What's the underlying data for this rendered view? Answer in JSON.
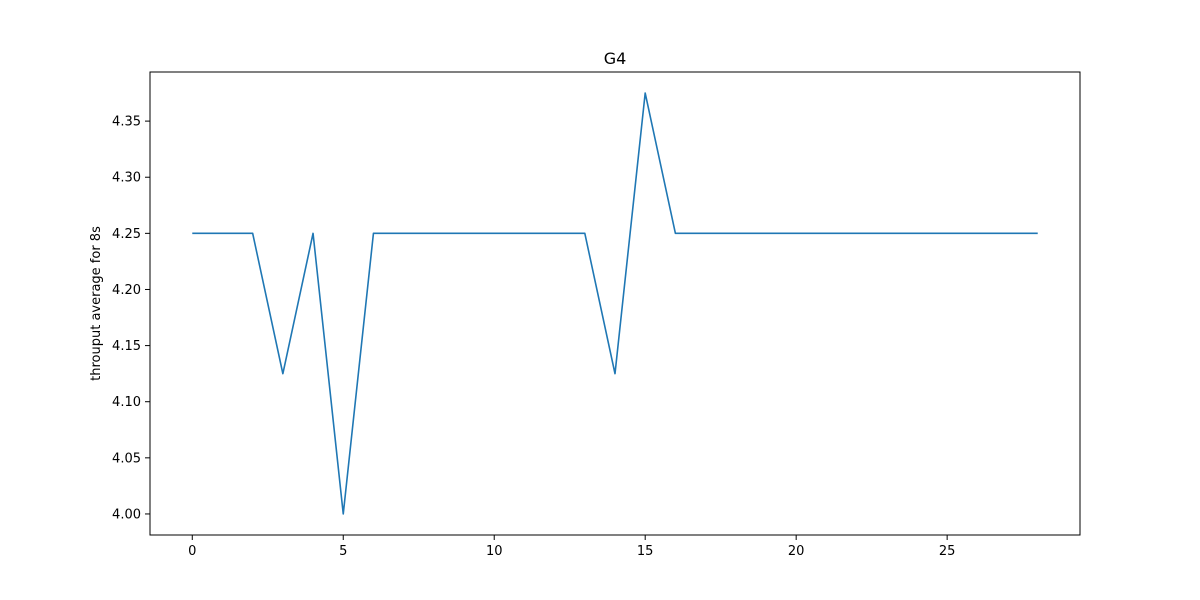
{
  "chart_data": {
    "type": "line",
    "title": "G4",
    "xlabel": "",
    "ylabel": "throuput average for 8s",
    "xlim": [
      -1.4,
      29.4
    ],
    "ylim": [
      3.98125,
      4.39375
    ],
    "xticks": [
      0,
      5,
      10,
      15,
      20,
      25
    ],
    "yticks": [
      4.0,
      4.05,
      4.1,
      4.15,
      4.2,
      4.25,
      4.3,
      4.35
    ],
    "grid": false,
    "series": [
      {
        "color": "#1f77b4",
        "x": [
          0,
          1,
          2,
          3,
          4,
          5,
          6,
          7,
          8,
          9,
          10,
          11,
          12,
          13,
          14,
          15,
          16,
          17,
          18,
          19,
          20,
          21,
          22,
          23,
          24,
          25,
          26,
          27,
          28
        ],
        "y": [
          4.25,
          4.25,
          4.25,
          4.125,
          4.25,
          4.0,
          4.25,
          4.25,
          4.25,
          4.25,
          4.25,
          4.25,
          4.25,
          4.25,
          4.125,
          4.375,
          4.25,
          4.25,
          4.25,
          4.25,
          4.25,
          4.25,
          4.25,
          4.25,
          4.25,
          4.25,
          4.25,
          4.25,
          4.25
        ]
      }
    ]
  }
}
